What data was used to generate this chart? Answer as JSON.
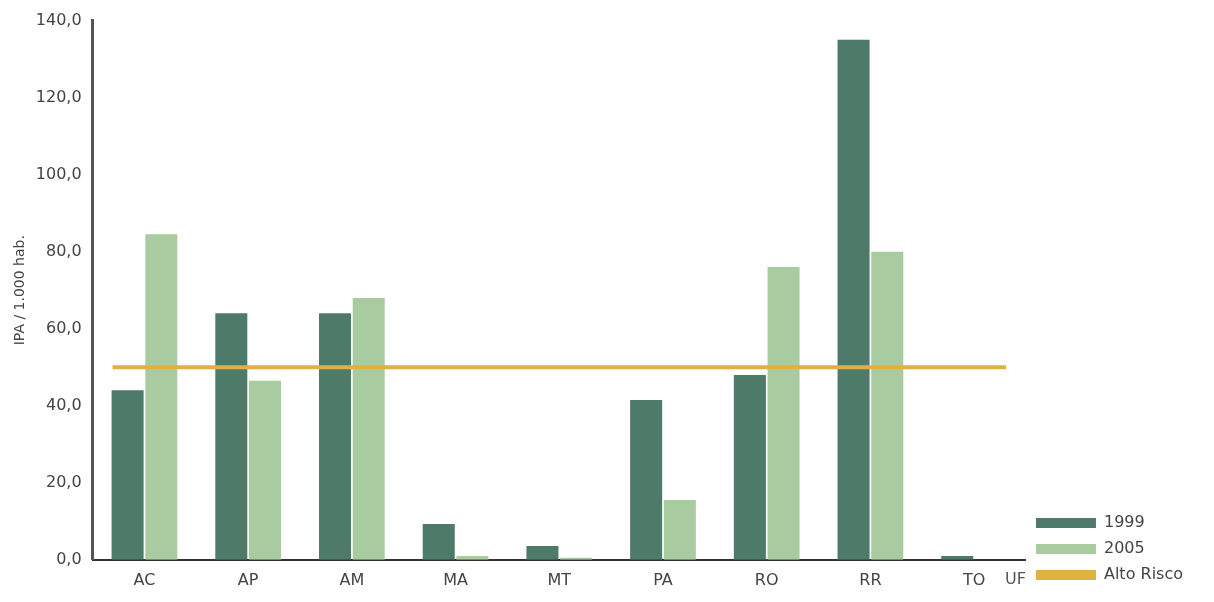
{
  "chart_data": {
    "type": "bar",
    "xlabel": "UF",
    "ylabel": "IPA / 1.000 hab.",
    "categories": [
      "AC",
      "AP",
      "AM",
      "MA",
      "MT",
      "PA",
      "RO",
      "RR",
      "TO"
    ],
    "series": [
      {
        "name": "1999",
        "color": "#4e7a6a",
        "values": [
          44,
          64,
          64,
          9.3,
          3.6,
          41.5,
          48,
          135,
          1
        ]
      },
      {
        "name": "2005",
        "color": "#a8cca0",
        "values": [
          84.5,
          46.5,
          68,
          1,
          0.5,
          15.5,
          76,
          80,
          null
        ]
      }
    ],
    "ylim": [
      0,
      140
    ],
    "yticks": [
      {
        "value": 0,
        "label": "0,0"
      },
      {
        "value": 20,
        "label": "20,0"
      },
      {
        "value": 40,
        "label": "40,0"
      },
      {
        "value": 60,
        "label": "60,0"
      },
      {
        "value": 80,
        "label": "80,0"
      },
      {
        "value": 100,
        "label": "100,0"
      },
      {
        "value": 120,
        "label": "120,0"
      },
      {
        "value": 140,
        "label": "140,0"
      }
    ],
    "ref_lines": [
      {
        "axis": "y",
        "value": 50,
        "label": "Alto Risco",
        "color": "#e0b040"
      }
    ],
    "grid": false,
    "legend": "bottom right"
  }
}
